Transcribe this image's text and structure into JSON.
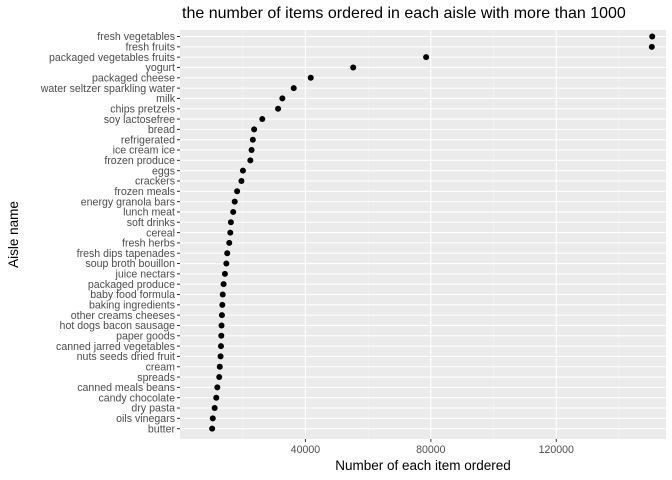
{
  "chart_data": {
    "type": "scatter",
    "title": "the number of items ordered in each aisle with more than 1000",
    "xlabel": "Number of each item ordered",
    "ylabel": "Aisle name",
    "xlim": [
      0,
      155000
    ],
    "xticks": [
      40000,
      80000,
      120000
    ],
    "xtick_labels": [
      "40000",
      "80000",
      "120000"
    ],
    "grid": true,
    "categories": [
      "fresh vegetables",
      "fresh fruits",
      "packaged vegetables fruits",
      "yogurt",
      "packaged cheese",
      "water seltzer sparkling water",
      "milk",
      "chips pretzels",
      "soy lactosefree",
      "bread",
      "refrigerated",
      "ice cream ice",
      "frozen produce",
      "eggs",
      "crackers",
      "frozen meals",
      "energy granola bars",
      "lunch meat",
      "soft drinks",
      "cereal",
      "fresh herbs",
      "fresh dips tapenades",
      "soup broth bouillon",
      "juice nectars",
      "packaged produce",
      "baby food formula",
      "baking ingredients",
      "other creams cheeses",
      "hot dogs bacon sausage",
      "paper goods",
      "canned jarred vegetables",
      "nuts seeds dried fruit",
      "cream",
      "spreads",
      "canned meals beans",
      "candy chocolate",
      "dry pasta",
      "oils vinegars",
      "butter"
    ],
    "values": [
      150600,
      150470,
      78490,
      55240,
      41700,
      36270,
      32640,
      31270,
      26240,
      23640,
      23230,
      22830,
      22430,
      20070,
      19600,
      18220,
      17450,
      16960,
      16230,
      16030,
      15710,
      15060,
      14780,
      14330,
      13910,
      13630,
      13500,
      13370,
      13250,
      13170,
      13060,
      12940,
      12680,
      12510,
      11910,
      11560,
      11050,
      10450,
      10250
    ]
  }
}
